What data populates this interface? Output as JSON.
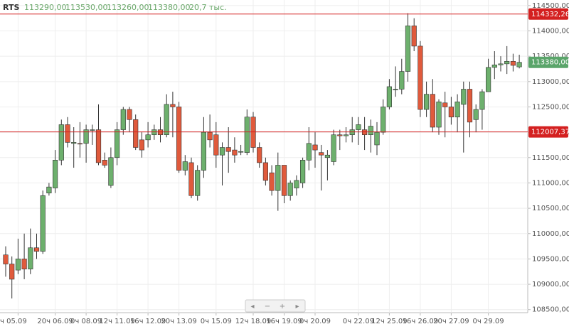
{
  "chart_data": {
    "type": "candlestick",
    "ticker": "RTS",
    "ohlc_labels": [
      "113290,00",
      "113530,00",
      "113260,00",
      "113380,00"
    ],
    "volume_label": "20,7 тыс.",
    "categories": [
      null,
      null,
      "ч 05.09",
      null,
      null,
      null,
      null,
      null,
      "20ч 06.09",
      null,
      null,
      null,
      null,
      "0ч 08.09",
      null,
      null,
      null,
      null,
      "12ч 11.09",
      null,
      null,
      null,
      null,
      "16ч 12.09",
      null,
      null,
      null,
      null,
      "20ч 13.09",
      null,
      null,
      null,
      null,
      null,
      "0ч 15.09",
      null,
      null,
      null,
      null,
      null,
      "12ч 18.09",
      null,
      null,
      null,
      null,
      "16ч 19.09",
      null,
      null,
      null,
      null,
      "0ч 20.09",
      null,
      null,
      null,
      null,
      null,
      null,
      "0ч 22.09",
      null,
      null,
      null,
      null,
      "12ч 25.09",
      null,
      null,
      null,
      null,
      "16ч 26.09",
      null,
      null,
      null,
      null,
      "20ч 27.09",
      null,
      null,
      null,
      null,
      null,
      "0ч 29.09",
      null,
      null,
      null,
      null,
      null
    ],
    "open": [
      109580,
      109400,
      109280,
      109500,
      109300,
      109720,
      109650,
      110800,
      110900,
      111450,
      112150,
      111780,
      111780,
      111780,
      112050,
      112050,
      111450,
      110950,
      111500,
      112050,
      112450,
      112250,
      111850,
      111850,
      111950,
      112050,
      111950,
      112550,
      112500,
      111250,
      111400,
      110750,
      111250,
      112000,
      111950,
      111550,
      111700,
      111650,
      111620,
      111600,
      112300,
      111700,
      111400,
      111200,
      110850,
      111350,
      110750,
      110900,
      111000,
      111450,
      111750,
      111600,
      111500,
      111420,
      111950,
      111930,
      111950,
      112050,
      112050,
      111950,
      111750,
      112000,
      112500,
      112850,
      112850,
      113200,
      114100,
      113700,
      112450,
      112750,
      112100,
      112580,
      112500,
      112300,
      112550,
      112850,
      112250,
      112450,
      112800,
      113280,
      113330,
      113350,
      113400,
      113290
    ],
    "high": [
      109750,
      109550,
      109900,
      110000,
      110100,
      110000,
      110850,
      111000,
      111650,
      112250,
      112300,
      112100,
      112200,
      112150,
      112150,
      112550,
      111600,
      111700,
      112200,
      112500,
      112500,
      112350,
      112000,
      112200,
      112150,
      112300,
      112750,
      112800,
      112600,
      111550,
      111500,
      111350,
      112300,
      112350,
      112200,
      111800,
      112100,
      111900,
      111750,
      112450,
      112400,
      111800,
      111500,
      111350,
      111600,
      111350,
      111050,
      111150,
      111500,
      112100,
      112000,
      111750,
      111650,
      112050,
      112050,
      112100,
      112300,
      112300,
      112300,
      112250,
      112200,
      112650,
      113050,
      113300,
      113450,
      114350,
      114250,
      113800,
      113000,
      113050,
      112650,
      112800,
      112700,
      112750,
      113000,
      113000,
      112550,
      112850,
      113450,
      113600,
      113500,
      113700,
      113550,
      113530
    ],
    "low": [
      109150,
      108720,
      109200,
      109100,
      109200,
      109500,
      109600,
      110750,
      110800,
      111350,
      111700,
      111300,
      111500,
      111400,
      111750,
      111350,
      111300,
      110900,
      111350,
      111950,
      112000,
      111650,
      111500,
      111700,
      111850,
      111800,
      111900,
      111900,
      111200,
      111150,
      110700,
      110650,
      111100,
      111700,
      111300,
      110950,
      111200,
      111400,
      111550,
      111550,
      111600,
      111300,
      110950,
      110750,
      110450,
      110600,
      110650,
      110750,
      110900,
      111250,
      111300,
      110850,
      111050,
      111350,
      111650,
      111800,
      111800,
      111750,
      111650,
      111600,
      111550,
      111950,
      112450,
      112700,
      112750,
      113000,
      113600,
      112300,
      112300,
      112000,
      111950,
      111900,
      112150,
      112000,
      111600,
      111900,
      112000,
      112050,
      112800,
      113050,
      113200,
      113150,
      113200,
      113260
    ],
    "close": [
      109400,
      109100,
      109500,
      109300,
      109720,
      109650,
      110750,
      110920,
      111450,
      112150,
      111800,
      111800,
      111770,
      112050,
      112050,
      111400,
      111350,
      111500,
      112050,
      112450,
      112250,
      111700,
      111650,
      111950,
      112050,
      111950,
      112550,
      112500,
      111250,
      111420,
      110750,
      111250,
      112000,
      111850,
      111550,
      111700,
      111620,
      111550,
      111620,
      112300,
      111700,
      111400,
      111050,
      110850,
      111350,
      110750,
      111000,
      111050,
      111450,
      111780,
      111650,
      111550,
      111550,
      111950,
      111930,
      111950,
      112050,
      112150,
      111950,
      112120,
      112000,
      112500,
      112900,
      112850,
      113200,
      114100,
      113700,
      112450,
      112750,
      112100,
      112600,
      112500,
      112300,
      112600,
      112850,
      112200,
      112450,
      112800,
      113280,
      113330,
      113350,
      113400,
      113320,
      113380
    ],
    "up_color": "#6db06d",
    "down_color": "#e05a3c",
    "ylim": [
      108440,
      114610
    ],
    "yticks": [
      {
        "value": 108500,
        "label": "108500,00"
      },
      {
        "value": 109000,
        "label": "109000,00"
      },
      {
        "value": 109500,
        "label": "109500,00"
      },
      {
        "value": 110000,
        "label": "110000,00"
      },
      {
        "value": 110500,
        "label": "110500,00"
      },
      {
        "value": 111000,
        "label": "111000,00"
      },
      {
        "value": 111500,
        "label": "111500,00"
      },
      {
        "value": 112000,
        "label": "112000,00"
      },
      {
        "value": 112500,
        "label": "112500,00"
      },
      {
        "value": 113000,
        "label": "113000,00"
      },
      {
        "value": 113500,
        "label": "113500,00"
      },
      {
        "value": 114000,
        "label": "114000,00"
      },
      {
        "value": 114500,
        "label": "114500,00"
      }
    ],
    "hlines": [
      {
        "value": 114332.26,
        "label": "114332,26",
        "color": "#d42020"
      },
      {
        "value": 112007.37,
        "label": "112007,37",
        "color": "#d42020"
      }
    ],
    "last_price": {
      "value": 113380,
      "label": "113380,00",
      "color": "#5aa56a"
    },
    "grid": true
  }
}
